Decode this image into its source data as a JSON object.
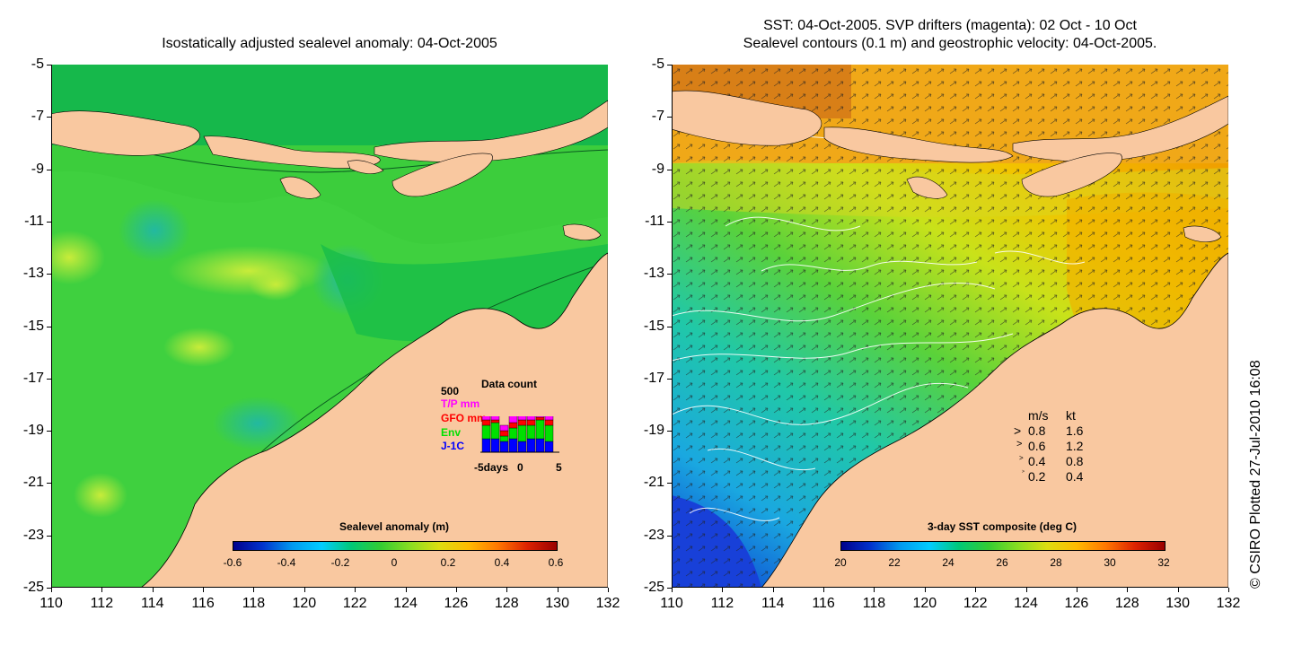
{
  "left_panel": {
    "title": "Isostatically adjusted sealevel anomaly: 04-Oct-2005",
    "colorbar": {
      "title": "Sealevel anomaly (m)",
      "labels": [
        "-0.6",
        "-0.4",
        "-0.2",
        "0",
        "0.2",
        "0.4",
        "0.6"
      ]
    },
    "data_count": {
      "title": "Data count",
      "max_label": "500",
      "series": [
        {
          "name": "T/P mm",
          "color": "#ff00ff"
        },
        {
          "name": "GFO mm",
          "color": "#ff0000"
        },
        {
          "name": "Env",
          "color": "#00e000"
        },
        {
          "name": "J-1C",
          "color": "#0000ff"
        }
      ],
      "x_labels": [
        "-5days",
        "0",
        "5"
      ],
      "bars": [
        {
          "tp": 0.15,
          "gfo": 0.1,
          "env": 0.25,
          "j1": 0.25
        },
        {
          "tp": 0.1,
          "gfo": 0.05,
          "env": 0.3,
          "j1": 0.25
        },
        {
          "tp": 0.1,
          "gfo": 0.1,
          "env": 0.1,
          "j1": 0.2
        },
        {
          "tp": 0.15,
          "gfo": 0.1,
          "env": 0.2,
          "j1": 0.25
        },
        {
          "tp": 0.15,
          "gfo": 0.1,
          "env": 0.3,
          "j1": 0.2
        },
        {
          "tp": 0.1,
          "gfo": 0.1,
          "env": 0.25,
          "j1": 0.25
        },
        {
          "tp": 0.15,
          "gfo": 0.05,
          "env": 0.35,
          "j1": 0.25
        },
        {
          "tp": 0.15,
          "gfo": 0.1,
          "env": 0.3,
          "j1": 0.2
        }
      ]
    }
  },
  "right_panel": {
    "title_line1": "SST: 04-Oct-2005. SVP drifters (magenta): 02 Oct - 10 Oct",
    "title_line2": "Sealevel contours (0.1 m) and geostrophic velocity: 04-Oct-2005.",
    "colorbar": {
      "title": "3-day SST composite (deg C)",
      "labels": [
        "20",
        "22",
        "24",
        "26",
        "28",
        "30",
        "32"
      ]
    },
    "velocity_legend": {
      "header_ms": "m/s",
      "header_kt": "kt",
      "rows": [
        {
          "ms": "0.8",
          "kt": "1.6"
        },
        {
          "ms": "0.6",
          "kt": "1.2"
        },
        {
          "ms": "0.4",
          "kt": "0.8"
        },
        {
          "ms": "0.2",
          "kt": "0.4"
        }
      ]
    }
  },
  "axes": {
    "y_labels": [
      "-5",
      "-7",
      "-9",
      "-11",
      "-13",
      "-15",
      "-17",
      "-19",
      "-21",
      "-23",
      "-25"
    ],
    "x_labels": [
      "110",
      "112",
      "114",
      "116",
      "118",
      "120",
      "122",
      "124",
      "126",
      "128",
      "130",
      "132"
    ]
  },
  "credit": "© CSIRO Plotted 27-Jul-2010 16:08",
  "colors": {
    "land": "#f9c8a0",
    "sea_green": "#1cc04a",
    "sea_light": "#4fd23a"
  }
}
